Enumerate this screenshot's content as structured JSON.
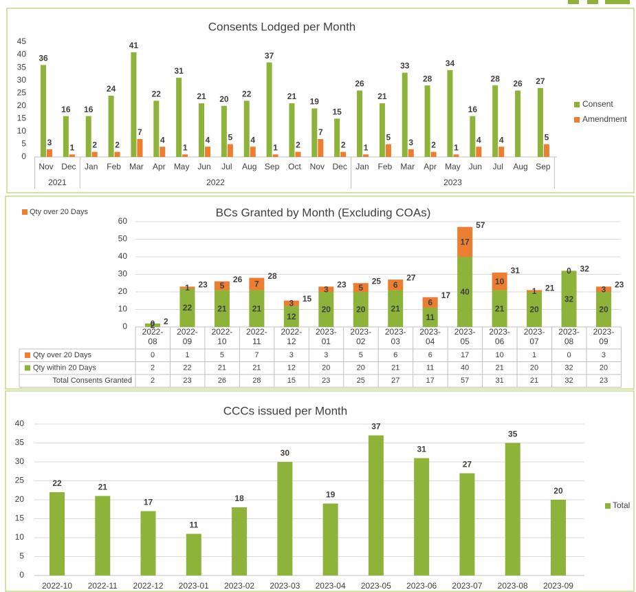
{
  "chart_data": [
    {
      "type": "grouped_bar",
      "title": "Consents Lodged per Month",
      "category_groups": [
        {
          "label": "2021",
          "categories": [
            "Nov",
            "Dec"
          ]
        },
        {
          "label": "2022",
          "categories": [
            "Jan",
            "Feb",
            "Mar",
            "Apr",
            "May",
            "Jun",
            "Jul",
            "Aug",
            "Sep",
            "Oct",
            "Nov",
            "Dec"
          ]
        },
        {
          "label": "2023",
          "categories": [
            "Jan",
            "Feb",
            "Mar",
            "Apr",
            "May",
            "Jun",
            "Jul",
            "Aug",
            "Sep"
          ]
        }
      ],
      "series": [
        {
          "name": "Consent",
          "color": "#8db33a",
          "values": [
            36,
            16,
            16,
            24,
            41,
            22,
            31,
            21,
            20,
            22,
            37,
            21,
            19,
            15,
            26,
            21,
            33,
            28,
            34,
            16,
            28,
            26,
            27
          ]
        },
        {
          "name": "Amendment",
          "color": "#ed7d31",
          "values": [
            3,
            1,
            2,
            2,
            7,
            4,
            1,
            4,
            5,
            4,
            1,
            2,
            7,
            2,
            1,
            5,
            3,
            2,
            1,
            4,
            4,
            null,
            5
          ]
        }
      ],
      "ylim": [
        0,
        45
      ],
      "yticks": [
        0,
        5,
        10,
        15,
        20,
        25,
        30,
        35,
        40,
        45
      ],
      "grid": false,
      "legend": "right"
    },
    {
      "type": "stacked_bar",
      "title": "BCs Granted by Month (Excluding COAs)",
      "categories": [
        "2022-08",
        "2022-09",
        "2022-10",
        "2022-11",
        "2022-12",
        "2023-01",
        "2023-02",
        "2023-03",
        "2023-04",
        "2023-05",
        "2023-06",
        "2023-07",
        "2023-08",
        "2023-09"
      ],
      "series": [
        {
          "name": "Qty over 20 Days",
          "color": "#ed7d31",
          "values": [
            0,
            1,
            5,
            7,
            3,
            3,
            5,
            6,
            6,
            17,
            10,
            1,
            0,
            3
          ]
        },
        {
          "name": "Qty within 20 Days",
          "color": "#8db33a",
          "values": [
            2,
            22,
            21,
            21,
            12,
            20,
            20,
            21,
            11,
            40,
            21,
            20,
            32,
            20
          ]
        }
      ],
      "totals": {
        "name": "Total Consents Granted",
        "values": [
          2,
          23,
          26,
          28,
          15,
          23,
          25,
          27,
          17,
          57,
          31,
          21,
          32,
          23
        ]
      },
      "ylim": [
        0,
        60
      ],
      "yticks": [
        0,
        10,
        20,
        30,
        40,
        50,
        60
      ],
      "grid": true,
      "legend": "top-left"
    },
    {
      "type": "bar",
      "title": "CCCs issued per Month",
      "categories": [
        "2022-10",
        "2022-11",
        "2022-12",
        "2023-01",
        "2023-02",
        "2023-03",
        "2023-04",
        "2023-05",
        "2023-06",
        "2023-07",
        "2023-08",
        "2023-09"
      ],
      "series": [
        {
          "name": "Total",
          "color": "#8db33a",
          "values": [
            22,
            21,
            17,
            11,
            18,
            30,
            19,
            37,
            31,
            27,
            35,
            20
          ]
        }
      ],
      "ylim": [
        0,
        40
      ],
      "yticks": [
        0,
        5,
        10,
        15,
        20,
        25,
        30,
        35,
        40
      ],
      "grid": true,
      "legend": "right"
    }
  ]
}
